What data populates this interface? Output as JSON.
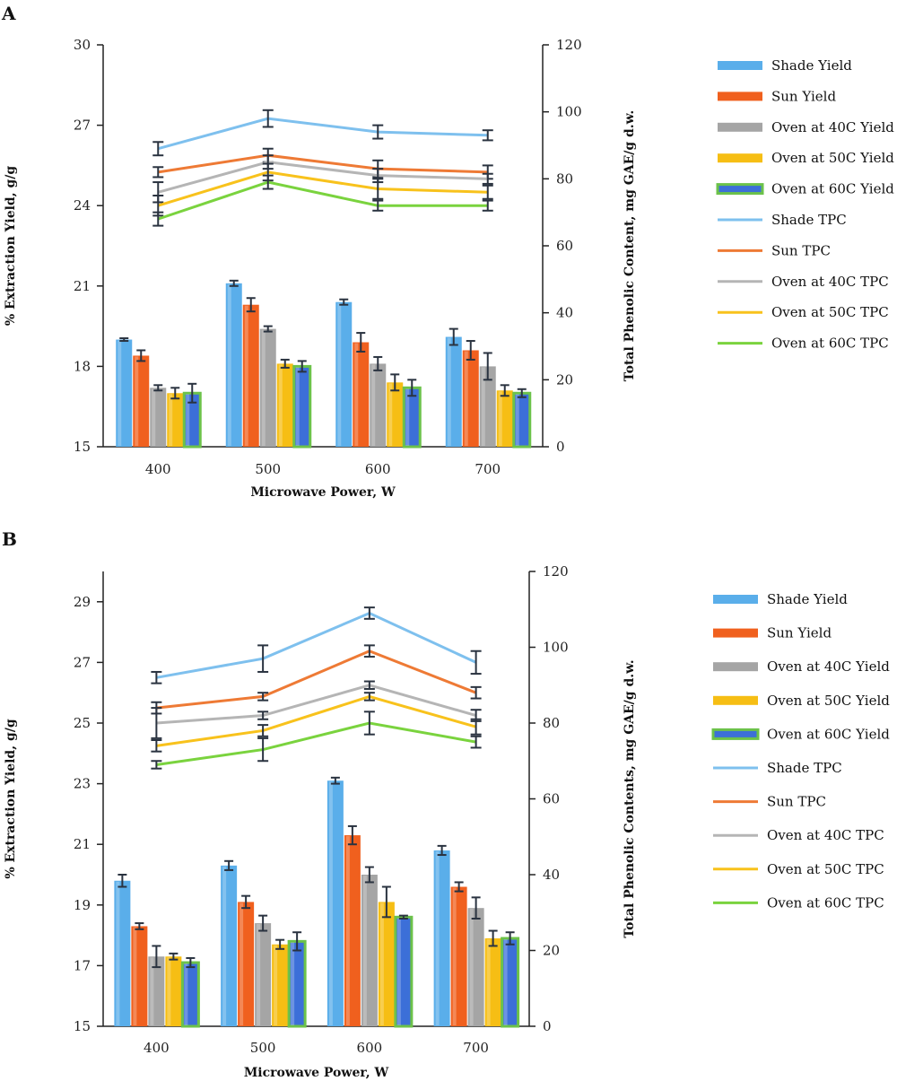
{
  "chart_data": [
    {
      "panel": "A",
      "type": "bar",
      "categories": [
        "400",
        "500",
        "600",
        "700"
      ],
      "xlabel": "Microwave Power, W",
      "ylabel": "% Extraction Yield, g/g",
      "y2label": "Total Phenolic Content, mg GAE/g d.w.",
      "ylim": [
        15,
        30
      ],
      "yticks": [
        15,
        18,
        21,
        24,
        27,
        30
      ],
      "y2lim": [
        0,
        120
      ],
      "y2ticks": [
        0,
        20,
        40,
        60,
        80,
        100,
        120
      ],
      "bar_series": [
        {
          "name": "Shade Yield",
          "color": "#5AAEEA",
          "values": [
            19.0,
            21.1,
            20.4,
            19.1
          ],
          "errors": [
            0.05,
            0.1,
            0.1,
            0.3
          ]
        },
        {
          "name": "Sun Yield",
          "color": "#F0601E",
          "values": [
            18.4,
            20.3,
            18.9,
            18.6
          ],
          "errors": [
            0.2,
            0.25,
            0.35,
            0.35
          ]
        },
        {
          "name": "Oven at 40C Yield",
          "color": "#A5A5A5",
          "values": [
            17.2,
            19.4,
            18.1,
            18.0
          ],
          "errors": [
            0.1,
            0.1,
            0.25,
            0.5
          ]
        },
        {
          "name": "Oven at 50C Yield",
          "color": "#F6BE14",
          "values": [
            17.0,
            18.1,
            17.4,
            17.1
          ],
          "errors": [
            0.2,
            0.15,
            0.3,
            0.2
          ]
        },
        {
          "name": "Oven at 60C Yield",
          "color": "#3C6FD8",
          "border": "#6CC24A",
          "values": [
            17.0,
            18.0,
            17.2,
            17.0
          ],
          "errors": [
            0.35,
            0.2,
            0.3,
            0.15
          ]
        }
      ],
      "line_series": [
        {
          "name": "Shade TPC",
          "color": "#7EC0EE",
          "values": [
            89,
            98,
            94,
            93
          ],
          "errors": [
            2,
            2.5,
            2,
            1.5
          ]
        },
        {
          "name": "Sun TPC",
          "color": "#EE7A35",
          "values": [
            82,
            87,
            83,
            82
          ],
          "errors": [
            1.5,
            2,
            2.5,
            2
          ]
        },
        {
          "name": "Oven at 40C TPC",
          "color": "#B5B5B5",
          "values": [
            76,
            85,
            81,
            80
          ],
          "errors": [
            3,
            2,
            2,
            1.5
          ]
        },
        {
          "name": "Oven at 50C TPC",
          "color": "#F8C21C",
          "values": [
            72,
            82,
            77,
            76
          ],
          "errors": [
            3,
            2.5,
            3,
            2
          ]
        },
        {
          "name": "Oven at 60C TPC",
          "color": "#7AD33E",
          "values": [
            68,
            79,
            72,
            72
          ],
          "errors": [
            2,
            2,
            1.5,
            1.5
          ]
        }
      ]
    },
    {
      "panel": "B",
      "type": "bar",
      "categories": [
        "400",
        "500",
        "600",
        "700"
      ],
      "xlabel": "Microwave Power, W",
      "ylabel": "% Extraction Yield, g/g",
      "y2label": "Total Phenolic Contents, mg GAE/g d.w.",
      "ylim": [
        15,
        30
      ],
      "yticks": [
        15,
        17,
        19,
        21,
        23,
        25,
        27,
        29
      ],
      "y2lim": [
        0,
        120
      ],
      "y2ticks": [
        0,
        20,
        40,
        60,
        80,
        100,
        120
      ],
      "bar_series": [
        {
          "name": "Shade Yield",
          "color": "#5AAEEA",
          "values": [
            19.8,
            20.3,
            23.1,
            20.8
          ],
          "errors": [
            0.2,
            0.15,
            0.1,
            0.15
          ]
        },
        {
          "name": "Sun Yield",
          "color": "#F0601E",
          "values": [
            18.3,
            19.1,
            21.3,
            19.6
          ],
          "errors": [
            0.1,
            0.2,
            0.3,
            0.15
          ]
        },
        {
          "name": "Oven at 40C Yield",
          "color": "#A5A5A5",
          "values": [
            17.3,
            18.4,
            20.0,
            18.9
          ],
          "errors": [
            0.35,
            0.25,
            0.25,
            0.35
          ]
        },
        {
          "name": "Oven at 50C Yield",
          "color": "#F6BE14",
          "values": [
            17.3,
            17.7,
            19.1,
            17.9
          ],
          "errors": [
            0.1,
            0.15,
            0.5,
            0.25
          ]
        },
        {
          "name": "Oven at 60C Yield",
          "color": "#3C6FD8",
          "border": "#6CC24A",
          "values": [
            17.1,
            17.8,
            18.6,
            17.9
          ],
          "errors": [
            0.15,
            0.3,
            0.05,
            0.2
          ]
        }
      ],
      "line_series": [
        {
          "name": "Shade TPC",
          "color": "#7EC0EE",
          "values": [
            92,
            97,
            109,
            96
          ],
          "errors": [
            1.5,
            3.5,
            1.5,
            3
          ]
        },
        {
          "name": "Sun TPC",
          "color": "#EE7A35",
          "values": [
            84,
            87,
            99,
            88
          ],
          "errors": [
            1.5,
            1,
            1.5,
            1.5
          ]
        },
        {
          "name": "Oven at 40C TPC",
          "color": "#B5B5B5",
          "values": [
            80,
            82,
            90,
            82
          ],
          "errors": [
            4,
            1,
            1,
            1.5
          ]
        },
        {
          "name": "Oven at 50C TPC",
          "color": "#F8C21C",
          "values": [
            74,
            78,
            87,
            79
          ],
          "errors": [
            1.5,
            1.5,
            1,
            2
          ]
        },
        {
          "name": "Oven at 60C TPC",
          "color": "#7AD33E",
          "values": [
            69,
            73,
            80,
            75
          ],
          "errors": [
            1,
            3,
            3,
            1.5
          ]
        }
      ]
    }
  ]
}
